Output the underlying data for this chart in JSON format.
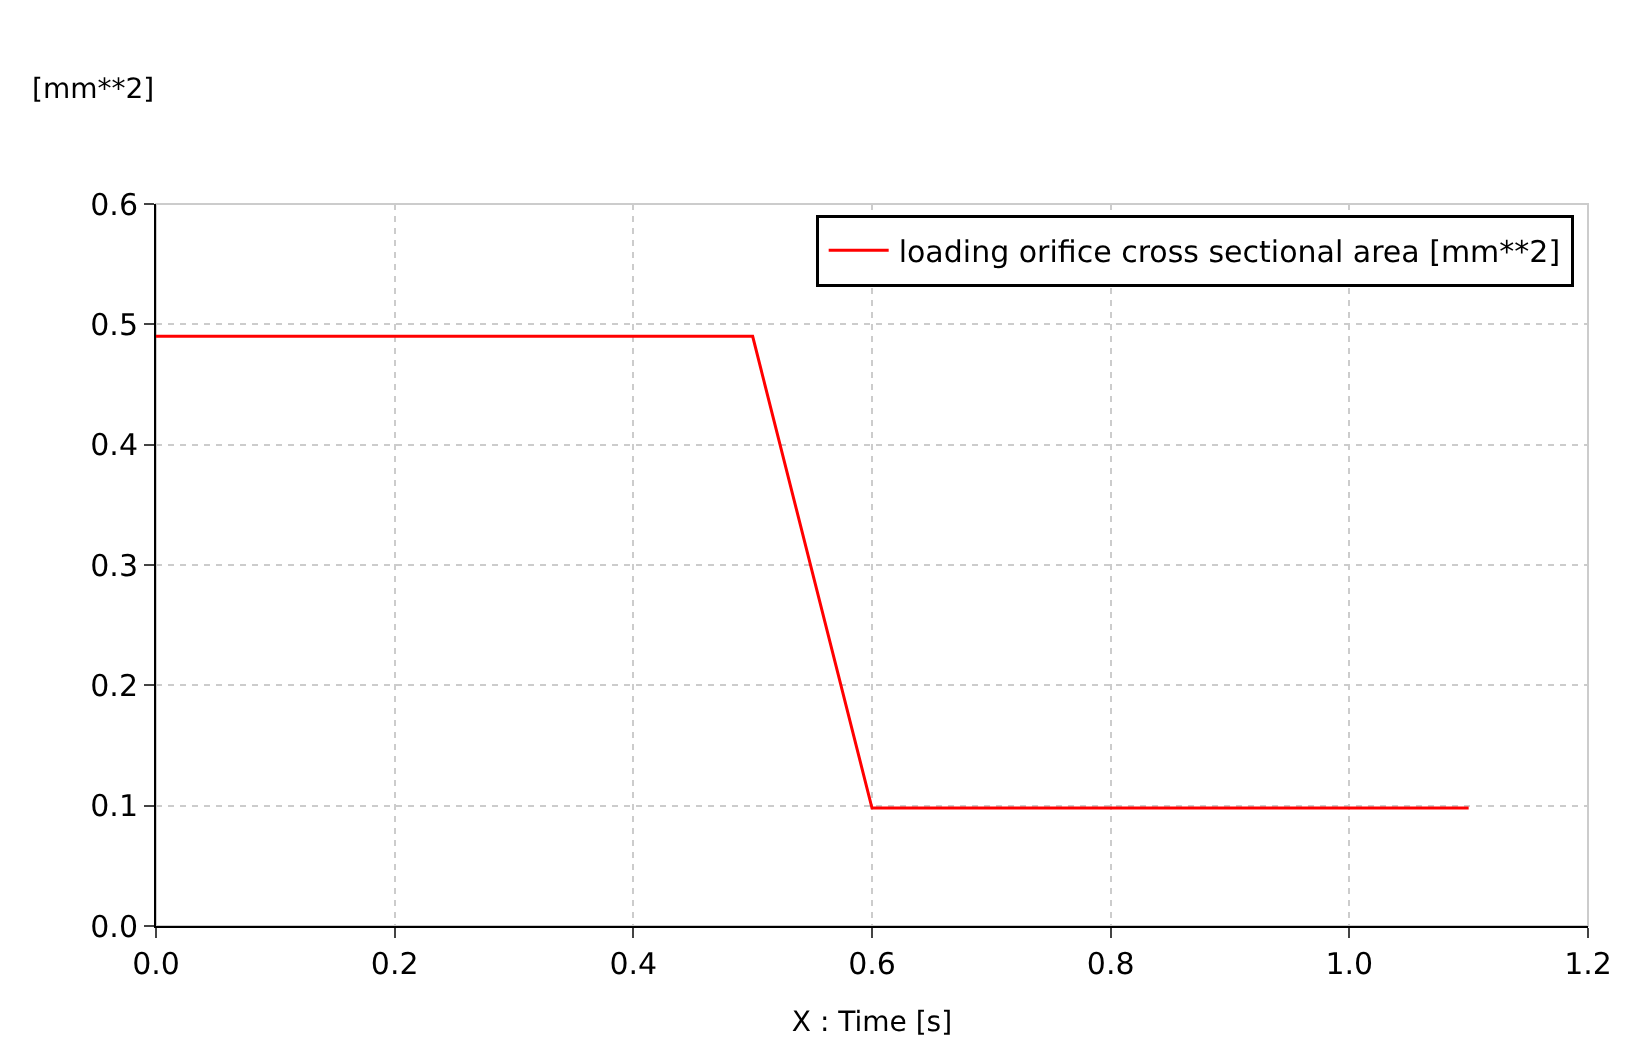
{
  "chart_data": {
    "type": "line",
    "xlabel": "X : Time [s]",
    "ylabel": "[mm**2]",
    "series": [
      {
        "name": "loading orifice cross sectional area [mm**2]",
        "color": "#ff0000",
        "x": [
          0.0,
          0.5,
          0.6,
          1.1
        ],
        "values": [
          0.49,
          0.49,
          0.098,
          0.098
        ]
      }
    ],
    "xlim": [
      0.0,
      1.2
    ],
    "xticks": [
      {
        "value": 0.0,
        "label": "0.0"
      },
      {
        "value": 0.2,
        "label": "0.2"
      },
      {
        "value": 0.4,
        "label": "0.4"
      },
      {
        "value": 0.6,
        "label": "0.6"
      },
      {
        "value": 0.8,
        "label": "0.8"
      },
      {
        "value": 1.0,
        "label": "1.0"
      },
      {
        "value": 1.2,
        "label": "1.2"
      }
    ],
    "ylim": [
      0.0,
      0.6
    ],
    "yticks": [
      {
        "value": 0.0,
        "label": "0.0"
      },
      {
        "value": 0.1,
        "label": "0.1"
      },
      {
        "value": 0.2,
        "label": "0.2"
      },
      {
        "value": 0.3,
        "label": "0.3"
      },
      {
        "value": 0.4,
        "label": "0.4"
      },
      {
        "value": 0.5,
        "label": "0.5"
      },
      {
        "value": 0.6,
        "label": "0.6"
      }
    ],
    "grid": true,
    "legend": "top right",
    "line_style": "solid",
    "marker": "none"
  }
}
